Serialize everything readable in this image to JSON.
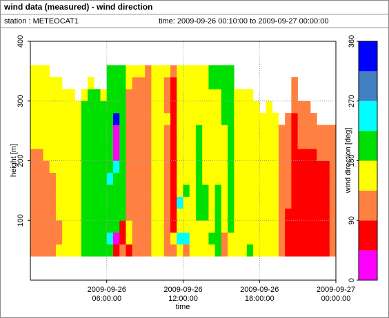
{
  "header": {
    "title": "wind data (measured) - wind direction",
    "station": "station : METEOCAT1",
    "time": "time: 2009-09-26 00:10:00 to 2009-09-27 00:00:00"
  },
  "chart_data": {
    "type": "heatmap",
    "xlabel": "time",
    "ylabel": "height [m]",
    "xlim": [
      0,
      24
    ],
    "xticks": [
      {
        "value": 6,
        "label": "2009-09-26 06:00:00"
      },
      {
        "value": 12,
        "label": "2009-09-26 12:00:00"
      },
      {
        "value": 18,
        "label": "2009-09-26 18:00:00"
      },
      {
        "value": 24,
        "label": "2009-09-27 00:00:00"
      }
    ],
    "ylim": [
      0,
      400
    ],
    "yticks": [
      100,
      200,
      300,
      400
    ],
    "grid": true,
    "x": [
      0,
      0.5,
      1,
      1.5,
      2,
      2.5,
      3,
      3.5,
      4,
      4.5,
      5,
      5.5,
      6,
      6.5,
      7,
      7.5,
      8,
      8.5,
      9,
      9.5,
      10,
      10.5,
      11,
      11.5,
      12,
      12.5,
      13,
      13.5,
      14,
      14.5,
      15,
      15.5,
      16,
      16.5,
      17,
      17.5,
      18,
      18.5,
      19,
      19.5,
      20,
      20.5,
      21,
      21.5,
      22,
      22.5,
      23,
      23.5
    ],
    "y": [
      40,
      60,
      80,
      100,
      120,
      140,
      160,
      180,
      200,
      220,
      240,
      260,
      280,
      300,
      320,
      340
    ],
    "values": [
      [
        110,
        110,
        110,
        110,
        110,
        110,
        110,
        110,
        110,
        160,
        160,
        160,
        160,
        160,
        160,
        160
      ],
      [
        110,
        110,
        110,
        110,
        110,
        110,
        110,
        110,
        110,
        160,
        160,
        160,
        160,
        160,
        160,
        160
      ],
      [
        110,
        110,
        110,
        110,
        110,
        110,
        110,
        110,
        160,
        160,
        160,
        160,
        160,
        160,
        160,
        160
      ],
      [
        110,
        110,
        110,
        110,
        110,
        110,
        110,
        160,
        160,
        160,
        160,
        160,
        160,
        160,
        160,
        null
      ],
      [
        160,
        110,
        110,
        160,
        160,
        160,
        160,
        160,
        160,
        160,
        160,
        160,
        160,
        160,
        160,
        null
      ],
      [
        160,
        160,
        160,
        160,
        160,
        160,
        160,
        160,
        160,
        160,
        160,
        160,
        160,
        160,
        null,
        null
      ],
      [
        160,
        160,
        160,
        160,
        160,
        160,
        160,
        160,
        160,
        160,
        160,
        160,
        160,
        160,
        null,
        null
      ],
      [
        160,
        160,
        160,
        160,
        160,
        160,
        160,
        160,
        160,
        160,
        160,
        160,
        160,
        null,
        null,
        null
      ],
      [
        200,
        200,
        200,
        200,
        200,
        200,
        200,
        200,
        200,
        200,
        200,
        200,
        200,
        160,
        null,
        null
      ],
      [
        200,
        200,
        200,
        200,
        200,
        200,
        200,
        200,
        200,
        200,
        200,
        200,
        200,
        200,
        160,
        null
      ],
      [
        200,
        200,
        200,
        200,
        200,
        200,
        200,
        200,
        200,
        200,
        200,
        200,
        200,
        200,
        null,
        null
      ],
      [
        200,
        200,
        200,
        200,
        200,
        200,
        200,
        200,
        200,
        200,
        200,
        200,
        200,
        160,
        null,
        null
      ],
      [
        200,
        250,
        200,
        200,
        200,
        200,
        250,
        200,
        200,
        200,
        200,
        200,
        200,
        200,
        200,
        200
      ],
      [
        70,
        20,
        200,
        200,
        200,
        200,
        200,
        250,
        20,
        20,
        20,
        330,
        200,
        200,
        200,
        200
      ],
      [
        110,
        70,
        70,
        200,
        200,
        200,
        200,
        200,
        200,
        200,
        200,
        200,
        200,
        200,
        200,
        200
      ],
      [
        70,
        160,
        160,
        110,
        110,
        110,
        110,
        110,
        110,
        110,
        110,
        110,
        110,
        110,
        160,
        160
      ],
      [
        110,
        110,
        110,
        110,
        110,
        110,
        110,
        110,
        110,
        110,
        110,
        110,
        110,
        110,
        110,
        160
      ],
      [
        110,
        110,
        110,
        110,
        110,
        110,
        110,
        110,
        110,
        110,
        110,
        110,
        110,
        110,
        110,
        160
      ],
      [
        110,
        110,
        110,
        110,
        110,
        110,
        110,
        110,
        110,
        110,
        110,
        110,
        110,
        110,
        110,
        110
      ],
      [
        160,
        160,
        160,
        160,
        160,
        160,
        160,
        160,
        160,
        160,
        160,
        160,
        160,
        160,
        160,
        160
      ],
      [
        160,
        160,
        160,
        160,
        160,
        160,
        160,
        160,
        160,
        160,
        160,
        160,
        160,
        160,
        160,
        160
      ],
      [
        110,
        110,
        110,
        110,
        110,
        110,
        110,
        110,
        110,
        110,
        110,
        160,
        110,
        110,
        110,
        160
      ],
      [
        110,
        160,
        70,
        70,
        70,
        70,
        70,
        70,
        70,
        70,
        70,
        70,
        70,
        70,
        70,
        110
      ],
      [
        160,
        250,
        160,
        160,
        250,
        160,
        160,
        160,
        160,
        160,
        160,
        160,
        160,
        160,
        160,
        160
      ],
      [
        110,
        250,
        160,
        160,
        160,
        200,
        160,
        160,
        160,
        160,
        160,
        160,
        160,
        160,
        160,
        160
      ],
      [
        160,
        160,
        160,
        160,
        160,
        160,
        160,
        160,
        160,
        160,
        160,
        160,
        160,
        160,
        160,
        160
      ],
      [
        160,
        160,
        160,
        200,
        200,
        200,
        200,
        200,
        200,
        200,
        200,
        160,
        160,
        160,
        160,
        160
      ],
      [
        160,
        160,
        160,
        200,
        200,
        200,
        160,
        160,
        160,
        160,
        160,
        160,
        160,
        160,
        160,
        160
      ],
      [
        160,
        200,
        160,
        160,
        160,
        160,
        160,
        160,
        160,
        160,
        160,
        160,
        160,
        160,
        200,
        200
      ],
      [
        200,
        200,
        200,
        200,
        200,
        200,
        160,
        160,
        160,
        160,
        160,
        160,
        160,
        160,
        200,
        200
      ],
      [
        110,
        110,
        160,
        160,
        160,
        160,
        160,
        160,
        160,
        160,
        160,
        200,
        200,
        200,
        200,
        200
      ],
      [
        160,
        160,
        200,
        200,
        200,
        200,
        200,
        200,
        200,
        200,
        200,
        200,
        200,
        200,
        200,
        200
      ],
      [
        160,
        160,
        160,
        160,
        160,
        160,
        160,
        160,
        160,
        160,
        160,
        160,
        160,
        160,
        null,
        null
      ],
      [
        160,
        160,
        160,
        160,
        160,
        160,
        160,
        160,
        160,
        160,
        160,
        160,
        160,
        160,
        null,
        null
      ],
      [
        200,
        160,
        160,
        160,
        160,
        160,
        160,
        160,
        160,
        160,
        160,
        160,
        160,
        160,
        null,
        null
      ],
      [
        160,
        160,
        160,
        160,
        160,
        160,
        160,
        160,
        160,
        160,
        160,
        160,
        160,
        null,
        null,
        null
      ],
      [
        160,
        160,
        160,
        160,
        160,
        160,
        160,
        160,
        160,
        160,
        160,
        160,
        null,
        null,
        null,
        null
      ],
      [
        160,
        160,
        160,
        160,
        160,
        160,
        160,
        160,
        160,
        160,
        160,
        160,
        160,
        null,
        null,
        null
      ],
      [
        160,
        160,
        160,
        160,
        160,
        160,
        160,
        160,
        160,
        160,
        160,
        160,
        null,
        null,
        null,
        null
      ],
      [
        110,
        110,
        110,
        110,
        110,
        110,
        110,
        110,
        110,
        110,
        110,
        null,
        null,
        null,
        null,
        null
      ],
      [
        70,
        70,
        70,
        70,
        110,
        110,
        110,
        110,
        110,
        110,
        110,
        110,
        null,
        null,
        null,
        null
      ],
      [
        70,
        70,
        70,
        70,
        70,
        70,
        70,
        70,
        70,
        70,
        70,
        70,
        110,
        110,
        110,
        null
      ],
      [
        70,
        70,
        70,
        70,
        70,
        70,
        70,
        70,
        70,
        110,
        110,
        110,
        110,
        null,
        null,
        null
      ],
      [
        70,
        70,
        70,
        70,
        70,
        70,
        70,
        70,
        70,
        110,
        110,
        110,
        110,
        null,
        null,
        null
      ],
      [
        70,
        70,
        70,
        70,
        70,
        70,
        70,
        70,
        70,
        110,
        110,
        110,
        null,
        null,
        null,
        null
      ],
      [
        70,
        70,
        70,
        70,
        70,
        70,
        70,
        70,
        110,
        110,
        110,
        null,
        null,
        null,
        null,
        null
      ],
      [
        70,
        70,
        70,
        70,
        70,
        70,
        70,
        70,
        110,
        110,
        110,
        null,
        null,
        null,
        null,
        null
      ],
      [
        110,
        110,
        110,
        110,
        110,
        110,
        110,
        110,
        110,
        110,
        110,
        null,
        null,
        null,
        null,
        null
      ]
    ],
    "colorbar": {
      "label": "wind direction [deg]",
      "lim": [
        0,
        360
      ],
      "ticks": [
        0,
        90,
        180,
        270,
        360
      ],
      "bounds": [
        0,
        45,
        90,
        135,
        180,
        225,
        270,
        315,
        360
      ],
      "colors": [
        "#ff00ff",
        "#ff0000",
        "#ff8040",
        "#ffff00",
        "#00e000",
        "#00ffff",
        "#4080c0",
        "#0000ff"
      ]
    }
  }
}
